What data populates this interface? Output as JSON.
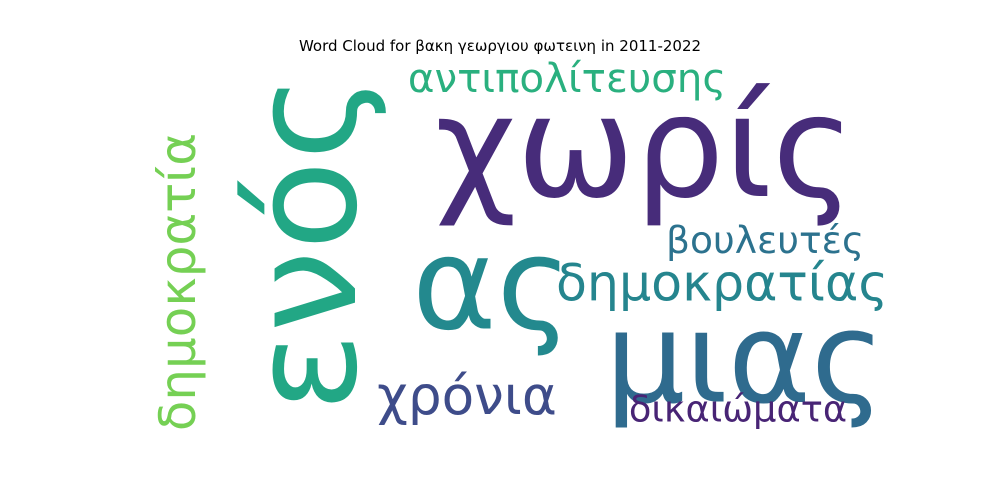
{
  "chart_data": {
    "type": "wordcloud",
    "title": "Word Cloud for βακη γεωργιου φωτεινη in 2011-2022",
    "words": [
      {
        "text": "χωρίς",
        "weight": 100,
        "color": "#472c7a",
        "orientation": "horizontal"
      },
      {
        "text": "ενός",
        "weight": 92,
        "color": "#22a785",
        "orientation": "vertical"
      },
      {
        "text": "ας",
        "weight": 95,
        "color": "#23898e",
        "orientation": "horizontal"
      },
      {
        "text": "μιας",
        "weight": 72,
        "color": "#2f6b8e",
        "orientation": "horizontal"
      },
      {
        "text": "δημοκρατίας",
        "weight": 40,
        "color": "#25858e",
        "orientation": "horizontal"
      },
      {
        "text": "αντιπολίτευσης",
        "weight": 30,
        "color": "#2ab07f",
        "orientation": "horizontal"
      },
      {
        "text": "δημοκρατία",
        "weight": 38,
        "color": "#75d054",
        "orientation": "vertical"
      },
      {
        "text": "βουλευτές",
        "weight": 29,
        "color": "#2c728e",
        "orientation": "horizontal"
      },
      {
        "text": "χρόνια",
        "weight": 36,
        "color": "#3e4c8a",
        "orientation": "horizontal"
      },
      {
        "text": "δικαιώματα",
        "weight": 27,
        "color": "#482475",
        "orientation": "horizontal"
      }
    ]
  }
}
